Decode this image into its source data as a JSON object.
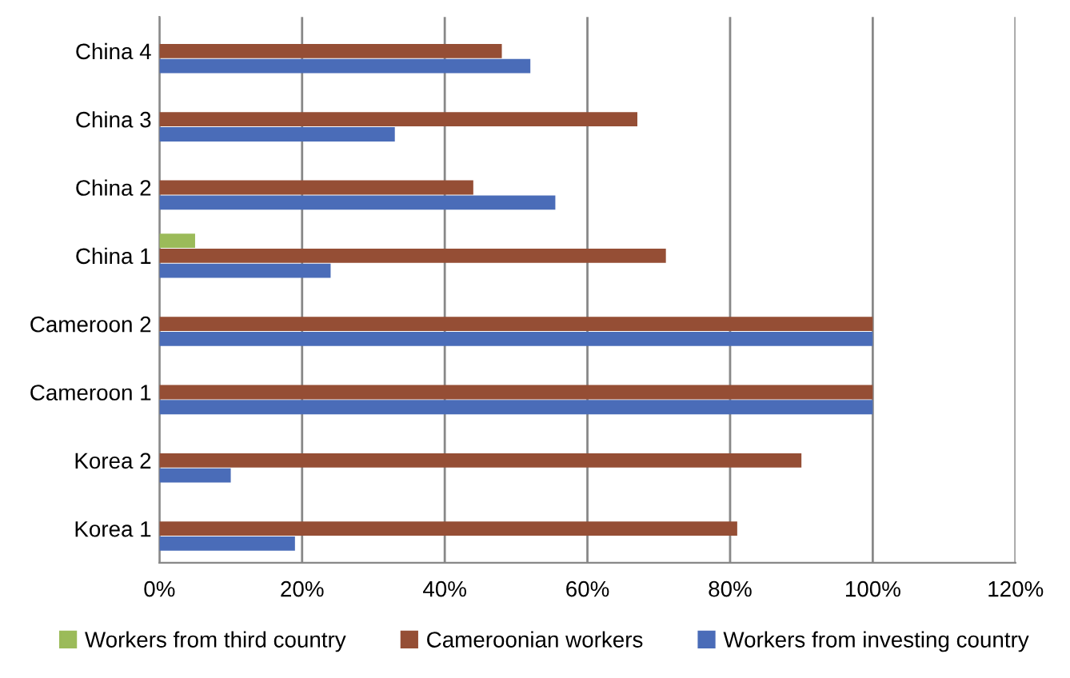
{
  "chart_data": {
    "type": "bar",
    "orientation": "horizontal",
    "categories": [
      "China 4",
      "China 3",
      "China 2",
      "China 1",
      "Cameroon 2",
      "Cameroon 1",
      "Korea 2",
      "Korea 1"
    ],
    "series": [
      {
        "name": "Workers from third country",
        "color": "#9bbb59",
        "values": [
          0,
          0,
          0,
          5,
          0,
          0,
          0,
          0
        ]
      },
      {
        "name": "Cameroonian workers",
        "color": "#954e35",
        "values": [
          48,
          67,
          44,
          71,
          100,
          100,
          90,
          81
        ]
      },
      {
        "name": "Workers from investing country",
        "color": "#4a6cb8",
        "values": [
          52,
          33,
          55.5,
          24,
          100,
          100,
          10,
          19
        ]
      }
    ],
    "xlim": [
      0,
      120
    ],
    "xticks": [
      {
        "value": 0,
        "label": "0%"
      },
      {
        "value": 20,
        "label": "20%"
      },
      {
        "value": 40,
        "label": "40%"
      },
      {
        "value": 60,
        "label": "60%"
      },
      {
        "value": 80,
        "label": "80%"
      },
      {
        "value": 100,
        "label": "100%"
      },
      {
        "value": 120,
        "label": "120%"
      }
    ],
    "grid": "x",
    "legend": "bottom"
  }
}
